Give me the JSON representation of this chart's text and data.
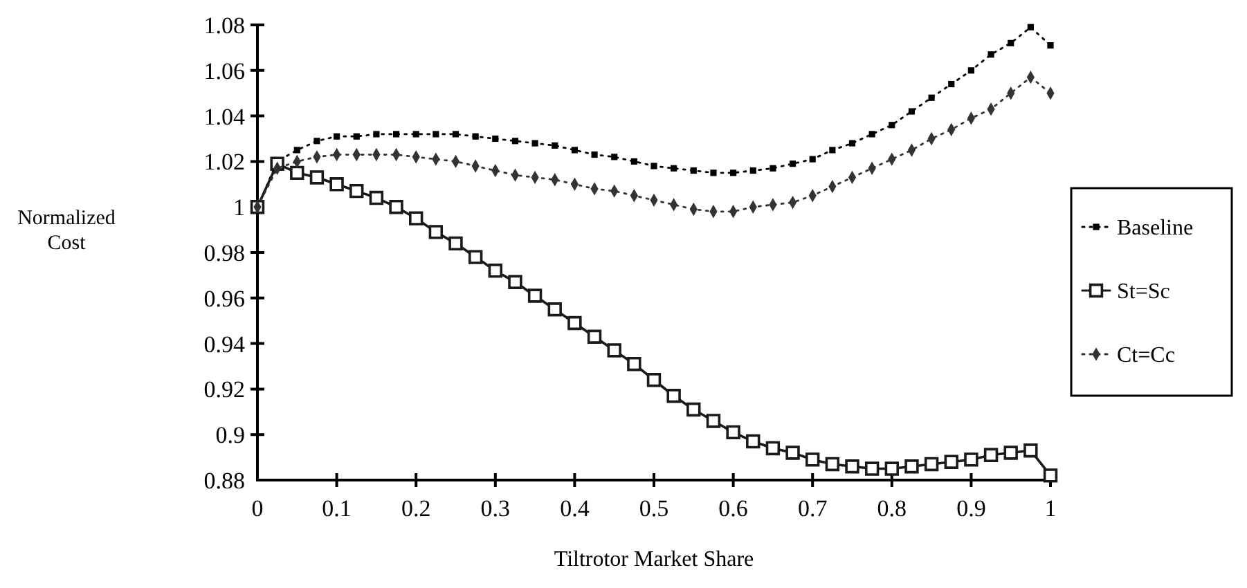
{
  "chart_data": {
    "type": "line",
    "xlabel": "Tiltrotor Market Share",
    "ylabel": "Normalized Cost",
    "x": [
      0,
      0.025,
      0.05,
      0.075,
      0.1,
      0.125,
      0.15,
      0.175,
      0.2,
      0.225,
      0.25,
      0.275,
      0.3,
      0.325,
      0.35,
      0.375,
      0.4,
      0.425,
      0.45,
      0.475,
      0.5,
      0.525,
      0.55,
      0.575,
      0.6,
      0.625,
      0.65,
      0.675,
      0.7,
      0.725,
      0.75,
      0.775,
      0.8,
      0.825,
      0.85,
      0.875,
      0.9,
      0.925,
      0.95,
      0.975,
      1
    ],
    "series": [
      {
        "name": "Baseline",
        "color": "#000000",
        "marker": "square",
        "line_style": "dotted",
        "values": [
          1.0,
          1.02,
          1.025,
          1.029,
          1.031,
          1.031,
          1.032,
          1.032,
          1.032,
          1.032,
          1.032,
          1.031,
          1.03,
          1.029,
          1.028,
          1.027,
          1.025,
          1.023,
          1.022,
          1.02,
          1.018,
          1.017,
          1.016,
          1.015,
          1.015,
          1.016,
          1.017,
          1.019,
          1.021,
          1.025,
          1.028,
          1.032,
          1.036,
          1.042,
          1.048,
          1.054,
          1.06,
          1.067,
          1.072,
          1.079,
          1.071
        ]
      },
      {
        "name": "St=Sc",
        "color": "#1a1a1a",
        "marker": "square",
        "line_style": "solid",
        "values": [
          1.0,
          1.019,
          1.015,
          1.013,
          1.01,
          1.007,
          1.004,
          1.0,
          0.995,
          0.989,
          0.984,
          0.978,
          0.972,
          0.967,
          0.961,
          0.955,
          0.949,
          0.943,
          0.937,
          0.931,
          0.924,
          0.917,
          0.911,
          0.906,
          0.901,
          0.897,
          0.894,
          0.892,
          0.889,
          0.887,
          0.886,
          0.885,
          0.885,
          0.886,
          0.887,
          0.888,
          0.889,
          0.891,
          0.892,
          0.893,
          0.882
        ]
      },
      {
        "name": "Ct=Cc",
        "color": "#333333",
        "marker": "diamond",
        "line_style": "dotted",
        "values": [
          1.0,
          1.017,
          1.02,
          1.022,
          1.023,
          1.023,
          1.023,
          1.023,
          1.022,
          1.021,
          1.02,
          1.018,
          1.016,
          1.014,
          1.013,
          1.012,
          1.01,
          1.008,
          1.007,
          1.005,
          1.003,
          1.001,
          0.999,
          0.998,
          0.998,
          1.0,
          1.001,
          1.002,
          1.005,
          1.009,
          1.013,
          1.017,
          1.021,
          1.025,
          1.03,
          1.034,
          1.039,
          1.043,
          1.05,
          1.057,
          1.05
        ]
      }
    ],
    "xlim": [
      0,
      1
    ],
    "xticks": [
      0,
      0.1,
      0.2,
      0.3,
      0.4,
      0.5,
      0.6,
      0.7,
      0.8,
      0.9,
      1
    ],
    "ylim": [
      0.88,
      1.08
    ],
    "yticks": [
      0.88,
      0.9,
      0.92,
      0.94,
      0.96,
      0.98,
      1,
      1.02,
      1.04,
      1.06,
      1.08
    ],
    "grid": false,
    "legend": "right"
  }
}
